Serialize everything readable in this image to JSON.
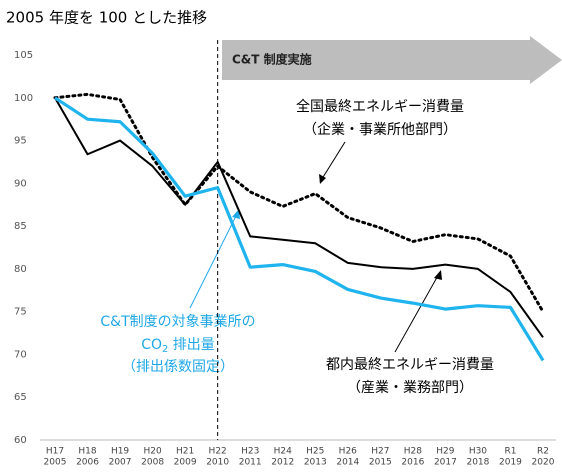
{
  "chart_data": {
    "type": "line",
    "title": "2005 年度を 100 とした推移",
    "categories": [
      "H17",
      "H18",
      "H19",
      "H20",
      "H21",
      "H22",
      "H23",
      "H24",
      "H25",
      "H26",
      "H27",
      "H28",
      "H29",
      "H30",
      "R1",
      "R2"
    ],
    "years": [
      "2005",
      "2006",
      "2007",
      "2008",
      "2009",
      "2010",
      "2011",
      "2012",
      "2013",
      "2014",
      "2015",
      "2016",
      "2017",
      "2018",
      "2019",
      "2020"
    ],
    "ylim": [
      60,
      105
    ],
    "yticks": [
      60,
      65,
      70,
      75,
      80,
      85,
      90,
      95,
      100,
      105
    ],
    "grid": false,
    "banner": "C&T 制度実施",
    "series": [
      {
        "color": "#000000",
        "style": "dotted",
        "values": [
          100,
          100.4,
          99.8,
          93,
          87.5,
          92,
          89,
          87.3,
          88.8,
          86,
          84.8,
          83.2,
          84,
          83.5,
          81.5,
          75
        ],
        "label": [
          "全国最終エネルギー消費量",
          "（企業・事業所他部門）"
        ]
      },
      {
        "color": "#000000",
        "style": "solid",
        "values": [
          100,
          93.4,
          95,
          92,
          87.5,
          92.5,
          83.8,
          83.4,
          83,
          80.7,
          80.2,
          80,
          80.5,
          80,
          77.3,
          72
        ],
        "label": [
          "都内最終エネルギー消費量",
          "（産業・業務部門）"
        ]
      },
      {
        "color": "#1fb4ee",
        "style": "thick",
        "values": [
          100,
          97.5,
          97.2,
          93.5,
          88.5,
          89.5,
          80.2,
          80.5,
          79.7,
          77.6,
          76.6,
          76,
          75.3,
          75.7,
          75.5,
          69.3
        ],
        "label": [
          "C&T制度の対象事業所の",
          "CO",
          "2",
          " 排出量",
          "（排出係数固定）"
        ]
      }
    ]
  }
}
